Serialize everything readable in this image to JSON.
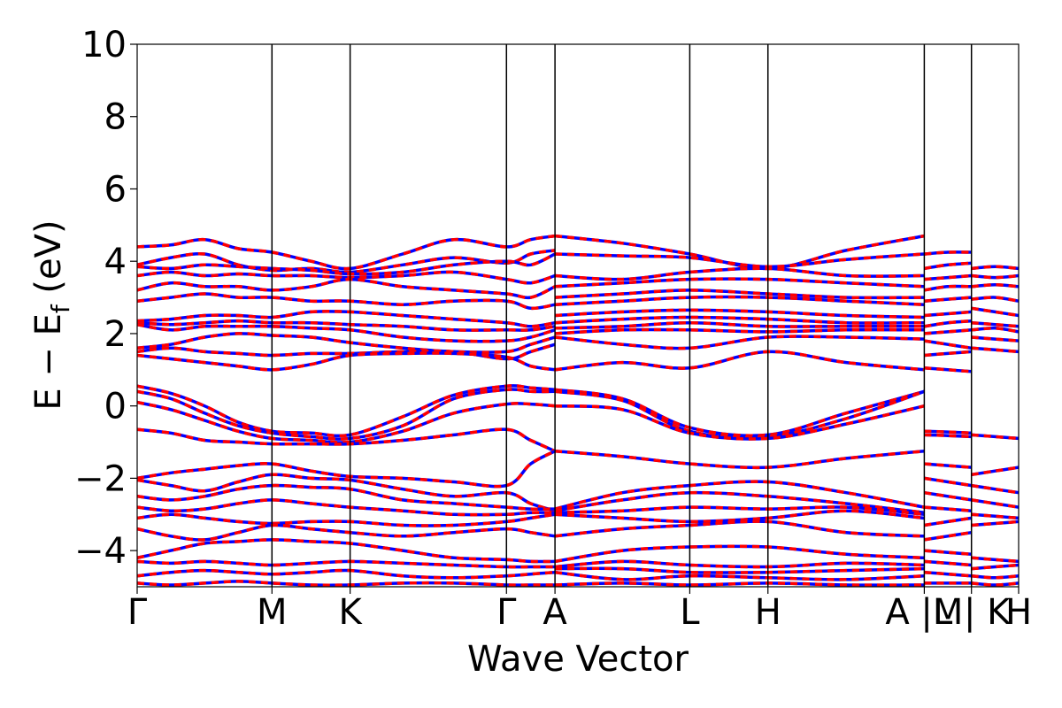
{
  "chart_data": {
    "type": "line",
    "title": "",
    "xlabel": "Wave Vector",
    "ylabel_parts": {
      "main": "E − E",
      "sub": "f",
      "unit": " (eV)"
    },
    "ylim": [
      -5,
      10
    ],
    "yticks": [
      -4,
      -2,
      0,
      2,
      4,
      6,
      8,
      10
    ],
    "ytick_labels": [
      "−4",
      "−2",
      "0",
      "2",
      "4",
      "6",
      "8",
      "10"
    ],
    "xticks": [
      {
        "label": "Γ",
        "k": 0.0
      },
      {
        "label": "M",
        "k": 1.0
      },
      {
        "label": "K",
        "k": 1.58
      },
      {
        "label": "Γ",
        "k": 2.74
      },
      {
        "label": "A",
        "k": 3.1
      },
      {
        "label": "L",
        "k": 4.1
      },
      {
        "label": "H",
        "k": 4.68
      },
      {
        "label": "A |M",
        "k": 5.84
      },
      {
        "label": "L | K",
        "k": 6.19
      },
      {
        "label": "H",
        "k": 6.54
      }
    ],
    "xlim": [
      0,
      6.54
    ],
    "grid": false,
    "legend": "none",
    "series_style": [
      {
        "color": "#0000ff",
        "dash": "none"
      },
      {
        "color": "#ff0000",
        "dash": "8,6"
      }
    ],
    "segments": [
      {
        "x": [
          0.0,
          0.25,
          0.5,
          0.75,
          1.0,
          1.29,
          1.58,
          1.97,
          2.35,
          2.74,
          2.92,
          3.1
        ],
        "bands": [
          [
            4.4,
            4.45,
            4.6,
            4.35,
            4.25,
            4.0,
            3.8,
            4.2,
            4.6,
            4.4,
            4.6,
            4.7
          ],
          [
            3.9,
            4.1,
            4.2,
            3.9,
            3.75,
            3.8,
            3.7,
            3.9,
            4.1,
            3.95,
            4.2,
            4.3
          ],
          [
            3.85,
            3.8,
            3.9,
            3.85,
            3.8,
            3.75,
            3.65,
            3.7,
            3.9,
            4.0,
            3.9,
            4.2
          ],
          [
            3.6,
            3.7,
            3.6,
            3.65,
            3.6,
            3.6,
            3.55,
            3.6,
            3.7,
            3.5,
            3.4,
            3.6
          ],
          [
            3.2,
            3.4,
            3.3,
            3.3,
            3.2,
            3.3,
            3.5,
            3.3,
            3.2,
            3.1,
            3.0,
            3.3
          ],
          [
            2.9,
            3.0,
            3.1,
            3.0,
            3.0,
            2.9,
            2.9,
            2.8,
            2.9,
            2.9,
            2.7,
            2.8
          ],
          [
            2.35,
            2.4,
            2.5,
            2.5,
            2.45,
            2.6,
            2.6,
            2.5,
            2.4,
            2.3,
            2.2,
            2.3
          ],
          [
            2.3,
            2.25,
            2.3,
            2.35,
            2.3,
            2.3,
            2.25,
            2.2,
            2.1,
            2.1,
            2.1,
            2.2
          ],
          [
            2.25,
            2.1,
            2.2,
            2.2,
            2.2,
            2.15,
            2.1,
            1.9,
            1.8,
            1.8,
            1.9,
            2.1
          ],
          [
            1.6,
            1.7,
            1.9,
            2.0,
            1.95,
            1.9,
            1.75,
            1.6,
            1.5,
            1.5,
            1.7,
            1.9
          ],
          [
            1.5,
            1.6,
            1.5,
            1.45,
            1.4,
            1.45,
            1.45,
            1.5,
            1.5,
            1.3,
            1.5,
            1.7
          ],
          [
            1.4,
            1.3,
            1.2,
            1.1,
            1.0,
            1.15,
            1.4,
            1.45,
            1.45,
            1.35,
            1.1,
            1.0
          ],
          [
            0.55,
            0.35,
            0.0,
            -0.45,
            -0.7,
            -0.75,
            -0.8,
            -0.3,
            0.3,
            0.55,
            0.5,
            0.45
          ],
          [
            0.4,
            0.2,
            -0.2,
            -0.55,
            -0.75,
            -0.85,
            -0.9,
            -0.55,
            0.2,
            0.45,
            0.4,
            0.4
          ],
          [
            0.1,
            -0.1,
            -0.4,
            -0.7,
            -0.9,
            -0.95,
            -1.0,
            -0.7,
            -0.2,
            0.05,
            0.05,
            0.0
          ],
          [
            -0.65,
            -0.75,
            -0.95,
            -1.0,
            -1.05,
            -1.05,
            -1.05,
            -0.95,
            -0.8,
            -0.65,
            -0.95,
            -1.25
          ],
          [
            -2.0,
            -1.85,
            -1.75,
            -1.65,
            -1.6,
            -1.8,
            -1.95,
            -2.0,
            -2.1,
            -2.2,
            -1.6,
            -1.25
          ],
          [
            -2.05,
            -2.2,
            -2.35,
            -2.1,
            -1.9,
            -2.0,
            -2.05,
            -2.3,
            -2.5,
            -2.4,
            -2.7,
            -2.9
          ],
          [
            -2.5,
            -2.6,
            -2.5,
            -2.3,
            -2.2,
            -2.25,
            -2.3,
            -2.6,
            -2.7,
            -2.8,
            -2.85,
            -2.85
          ],
          [
            -2.8,
            -2.9,
            -2.85,
            -2.7,
            -2.6,
            -2.7,
            -2.8,
            -2.9,
            -3.0,
            -3.0,
            -2.95,
            -2.95
          ],
          [
            -3.1,
            -3.0,
            -3.1,
            -3.2,
            -3.25,
            -3.2,
            -3.2,
            -3.3,
            -3.3,
            -3.2,
            -3.1,
            -3.0
          ],
          [
            -3.4,
            -3.6,
            -3.7,
            -3.5,
            -3.3,
            -3.4,
            -3.5,
            -3.6,
            -3.5,
            -3.4,
            -3.5,
            -3.6
          ],
          [
            -4.2,
            -4.0,
            -3.8,
            -3.75,
            -3.7,
            -3.75,
            -3.8,
            -4.0,
            -4.2,
            -4.25,
            -4.3,
            -4.3
          ],
          [
            -4.3,
            -4.35,
            -4.3,
            -4.35,
            -4.4,
            -4.35,
            -4.3,
            -4.35,
            -4.4,
            -4.45,
            -4.45,
            -4.45
          ],
          [
            -4.7,
            -4.6,
            -4.55,
            -4.6,
            -4.65,
            -4.6,
            -4.55,
            -4.7,
            -4.75,
            -4.7,
            -4.65,
            -4.6
          ],
          [
            -4.9,
            -4.95,
            -4.9,
            -4.85,
            -4.9,
            -4.95,
            -4.95,
            -4.9,
            -4.9,
            -4.95,
            -4.95,
            -4.95
          ]
        ]
      },
      {
        "x": [
          3.1,
          3.6,
          4.1,
          4.68,
          5.26,
          5.84
        ],
        "bands": [
          [
            4.7,
            4.5,
            4.2,
            3.8,
            4.3,
            4.7
          ],
          [
            4.2,
            4.15,
            4.1,
            3.85,
            4.05,
            4.2
          ],
          [
            3.6,
            3.5,
            3.7,
            3.8,
            3.6,
            3.6
          ],
          [
            3.3,
            3.4,
            3.5,
            3.5,
            3.4,
            3.3
          ],
          [
            3.0,
            3.1,
            3.2,
            3.1,
            3.0,
            3.0
          ],
          [
            2.8,
            2.9,
            3.0,
            3.0,
            2.9,
            2.8
          ],
          [
            2.5,
            2.6,
            2.65,
            2.6,
            2.5,
            2.45
          ],
          [
            2.3,
            2.4,
            2.45,
            2.4,
            2.3,
            2.3
          ],
          [
            2.15,
            2.2,
            2.3,
            2.2,
            2.2,
            2.2
          ],
          [
            2.0,
            2.1,
            2.1,
            2.05,
            2.1,
            2.1
          ],
          [
            1.9,
            1.7,
            1.6,
            1.9,
            1.9,
            1.85
          ],
          [
            1.0,
            1.2,
            1.05,
            1.5,
            1.2,
            1.0
          ],
          [
            0.45,
            0.2,
            -0.6,
            -0.8,
            -0.2,
            0.4
          ],
          [
            0.4,
            0.15,
            -0.7,
            -0.85,
            -0.35,
            0.4
          ],
          [
            0.0,
            -0.1,
            -0.75,
            -0.9,
            -0.5,
            0.0
          ],
          [
            -1.25,
            -1.4,
            -1.6,
            -1.7,
            -1.45,
            -1.25
          ],
          [
            -2.85,
            -2.4,
            -2.2,
            -2.1,
            -2.4,
            -2.8
          ],
          [
            -2.9,
            -2.6,
            -2.4,
            -2.5,
            -2.7,
            -2.95
          ],
          [
            -2.95,
            -2.9,
            -2.8,
            -2.85,
            -2.8,
            -3.0
          ],
          [
            -3.0,
            -3.1,
            -3.2,
            -3.1,
            -2.9,
            -3.1
          ],
          [
            -3.6,
            -3.4,
            -3.3,
            -3.2,
            -3.5,
            -3.6
          ],
          [
            -4.3,
            -4.0,
            -3.9,
            -3.9,
            -4.1,
            -4.2
          ],
          [
            -4.45,
            -4.3,
            -4.4,
            -4.45,
            -4.35,
            -4.4
          ],
          [
            -4.5,
            -4.5,
            -4.6,
            -4.6,
            -4.55,
            -4.5
          ],
          [
            -4.6,
            -4.8,
            -4.7,
            -4.75,
            -4.8,
            -4.7
          ],
          [
            -4.95,
            -4.9,
            -4.95,
            -4.9,
            -4.95,
            -4.95
          ]
        ]
      },
      {
        "x": [
          5.84,
          6.015,
          6.19
        ],
        "bands": [
          [
            4.2,
            4.25,
            4.25
          ],
          [
            3.8,
            3.9,
            3.95
          ],
          [
            3.5,
            3.55,
            3.6
          ],
          [
            3.2,
            3.3,
            3.3
          ],
          [
            2.9,
            2.95,
            3.0
          ],
          [
            2.5,
            2.55,
            2.6
          ],
          [
            2.2,
            2.3,
            2.35
          ],
          [
            2.0,
            2.05,
            2.1
          ],
          [
            1.8,
            1.7,
            1.6
          ],
          [
            1.4,
            1.45,
            1.5
          ],
          [
            1.05,
            1.0,
            0.95
          ],
          [
            -0.7,
            -0.72,
            -0.75
          ],
          [
            -0.8,
            -0.82,
            -0.85
          ],
          [
            -1.6,
            -1.65,
            -1.7
          ],
          [
            -2.0,
            -2.1,
            -2.2
          ],
          [
            -2.4,
            -2.5,
            -2.6
          ],
          [
            -2.8,
            -2.85,
            -2.9
          ],
          [
            -3.3,
            -3.2,
            -3.1
          ],
          [
            -3.7,
            -3.6,
            -3.5
          ],
          [
            -4.0,
            -4.05,
            -4.1
          ],
          [
            -4.3,
            -4.35,
            -4.4
          ],
          [
            -4.6,
            -4.65,
            -4.7
          ],
          [
            -4.9,
            -4.9,
            -4.9
          ]
        ]
      },
      {
        "x": [
          6.19,
          6.365,
          6.54
        ],
        "bands": [
          [
            3.8,
            3.85,
            3.8
          ],
          [
            3.6,
            3.55,
            3.6
          ],
          [
            3.3,
            3.35,
            3.3
          ],
          [
            2.95,
            3.0,
            2.9
          ],
          [
            2.7,
            2.6,
            2.5
          ],
          [
            2.3,
            2.25,
            2.2
          ],
          [
            2.1,
            2.15,
            2.05
          ],
          [
            1.9,
            1.85,
            1.8
          ],
          [
            1.6,
            1.55,
            1.5
          ],
          [
            -0.8,
            -0.85,
            -0.9
          ],
          [
            -1.9,
            -1.8,
            -1.7
          ],
          [
            -2.2,
            -2.3,
            -2.4
          ],
          [
            -2.6,
            -2.7,
            -2.8
          ],
          [
            -3.0,
            -3.05,
            -3.1
          ],
          [
            -3.3,
            -3.25,
            -3.2
          ],
          [
            -4.2,
            -4.25,
            -4.3
          ],
          [
            -4.5,
            -4.45,
            -4.4
          ],
          [
            -4.7,
            -4.75,
            -4.7
          ],
          [
            -4.9,
            -4.95,
            -4.9
          ]
        ]
      }
    ]
  }
}
